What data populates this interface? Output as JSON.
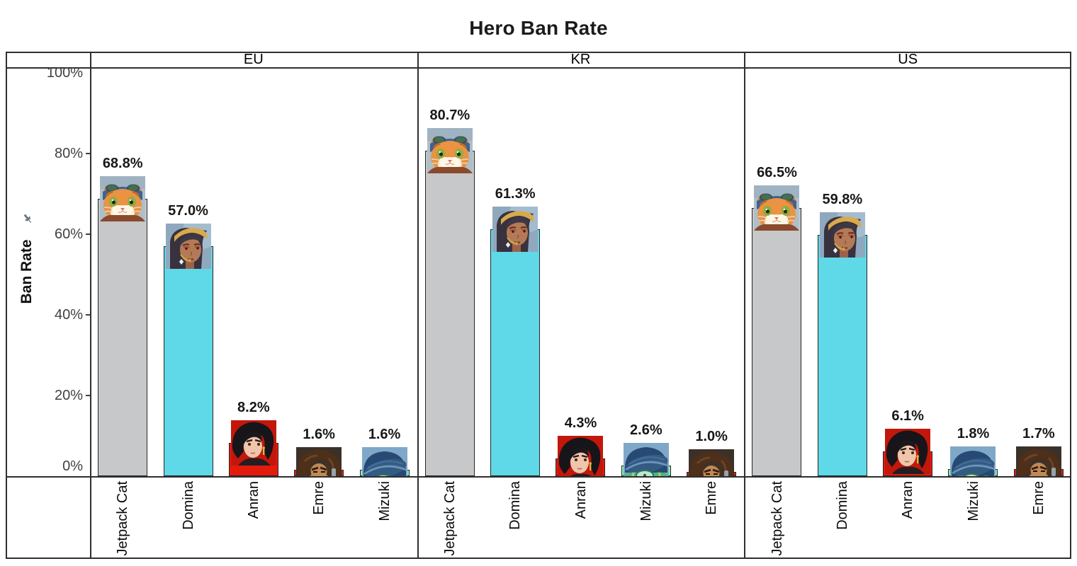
{
  "title": "Hero Ban Rate",
  "y_axis": {
    "label": "Ban Rate",
    "ticks": [
      {
        "label": "100%",
        "value": 100
      },
      {
        "label": "80%",
        "value": 80
      },
      {
        "label": "60%",
        "value": 60
      },
      {
        "label": "40%",
        "value": 40
      },
      {
        "label": "20%",
        "value": 20
      },
      {
        "label": "0%",
        "value": 0
      }
    ]
  },
  "icons": {
    "pin": "pushpin-icon",
    "pin_color": "#6d7983"
  },
  "chart_data": {
    "type": "bar",
    "title": "Hero Ban Rate",
    "xlabel": "",
    "ylabel": "Ban Rate",
    "ylim": [
      0,
      100
    ],
    "unit": "%",
    "grid": false,
    "legend": "none",
    "panels": [
      {
        "region": "EU",
        "bars": [
          {
            "hero": "Jetpack Cat",
            "value": 68.8,
            "label": "68.8%"
          },
          {
            "hero": "Domina",
            "value": 57.0,
            "label": "57.0%"
          },
          {
            "hero": "Anran",
            "value": 8.2,
            "label": "8.2%"
          },
          {
            "hero": "Emre",
            "value": 1.6,
            "label": "1.6%"
          },
          {
            "hero": "Mizuki",
            "value": 1.6,
            "label": "1.6%"
          }
        ]
      },
      {
        "region": "KR",
        "bars": [
          {
            "hero": "Jetpack Cat",
            "value": 80.7,
            "label": "80.7%"
          },
          {
            "hero": "Domina",
            "value": 61.3,
            "label": "61.3%"
          },
          {
            "hero": "Anran",
            "value": 4.3,
            "label": "4.3%"
          },
          {
            "hero": "Mizuki",
            "value": 2.6,
            "label": "2.6%"
          },
          {
            "hero": "Emre",
            "value": 1.0,
            "label": "1.0%"
          }
        ]
      },
      {
        "region": "US",
        "bars": [
          {
            "hero": "Jetpack Cat",
            "value": 66.5,
            "label": "66.5%"
          },
          {
            "hero": "Domina",
            "value": 59.8,
            "label": "59.8%"
          },
          {
            "hero": "Anran",
            "value": 6.1,
            "label": "6.1%"
          },
          {
            "hero": "Mizuki",
            "value": 1.8,
            "label": "1.8%"
          },
          {
            "hero": "Emre",
            "value": 1.7,
            "label": "1.7%"
          }
        ]
      }
    ],
    "hero_colors": {
      "Jetpack Cat": "#c7c8ca",
      "Domina": "#5fd8e8",
      "Anran": "#e41b0c",
      "Emre": "#e41b0c",
      "Mizuki": "#86efad"
    }
  }
}
